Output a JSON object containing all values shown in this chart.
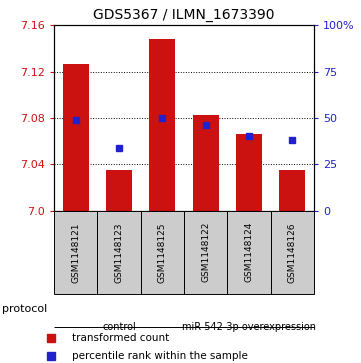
{
  "title": "GDS5367 / ILMN_1673390",
  "samples": [
    "GSM1148121",
    "GSM1148123",
    "GSM1148125",
    "GSM1148122",
    "GSM1148124",
    "GSM1148126"
  ],
  "transformed_counts": [
    7.127,
    7.035,
    7.148,
    7.083,
    7.066,
    7.035
  ],
  "percentile_ranks": [
    49,
    34,
    50,
    46,
    40,
    38
  ],
  "ylim_left": [
    7.0,
    7.16
  ],
  "ylim_right": [
    0,
    100
  ],
  "yticks_left": [
    7.0,
    7.04,
    7.08,
    7.12,
    7.16
  ],
  "yticks_right": [
    0,
    25,
    50,
    75,
    100
  ],
  "bar_color": "#cc1111",
  "dot_color": "#2222cc",
  "bar_width": 0.6,
  "groups": [
    {
      "label": "control",
      "indices": [
        0,
        1,
        2
      ],
      "color": "#aaffaa"
    },
    {
      "label": "miR-542-3p overexpression",
      "indices": [
        3,
        4,
        5
      ],
      "color": "#55ee55"
    }
  ],
  "protocol_label": "protocol",
  "legend_items": [
    {
      "label": "transformed count",
      "color": "#cc1111"
    },
    {
      "label": "percentile rank within the sample",
      "color": "#2222cc"
    }
  ],
  "sample_bg": "#cccccc"
}
